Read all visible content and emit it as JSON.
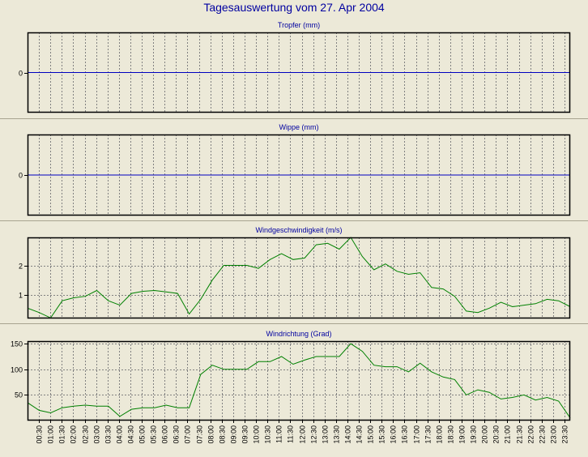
{
  "page": {
    "title": "Tagesauswertung vom 27. Apr 2004"
  },
  "colors": {
    "background": "#ECE9D8",
    "title": "#0000A0",
    "zero_line": "#0000C0",
    "series_line": "#008000",
    "grid": "#808080"
  },
  "x_labels": [
    "00:30",
    "01:00",
    "01:30",
    "02:00",
    "02:30",
    "03:00",
    "03:30",
    "04:00",
    "04:30",
    "05:00",
    "05:30",
    "06:00",
    "06:30",
    "07:00",
    "07:30",
    "08:00",
    "08:30",
    "09:00",
    "09:30",
    "10:00",
    "10:30",
    "11:00",
    "11:30",
    "12:00",
    "12:30",
    "13:00",
    "13:30",
    "14:00",
    "14:30",
    "15:00",
    "15:30",
    "16:00",
    "16:30",
    "17:00",
    "17:30",
    "18:00",
    "18:30",
    "19:00",
    "19:30",
    "20:00",
    "20:30",
    "21:00",
    "21:30",
    "22:00",
    "22:30",
    "23:00",
    "23:30"
  ],
  "chart_data": [
    {
      "type": "line",
      "title": "Tropfer (mm)",
      "yticks": [
        "0"
      ],
      "ylim": [
        -1,
        1
      ],
      "series": [
        {
          "values": [
            0,
            0
          ]
        }
      ]
    },
    {
      "type": "line",
      "title": "Wippe (mm)",
      "yticks": [
        "0"
      ],
      "ylim": [
        -1,
        1
      ],
      "series": [
        {
          "values": [
            0,
            0
          ]
        }
      ]
    },
    {
      "type": "line",
      "title": "Windgeschwindigkeit (m/s)",
      "yticks": [
        "1",
        "2"
      ],
      "ylim": [
        0.2,
        2.95
      ],
      "series": [
        {
          "values": [
            0.55,
            0.4,
            0.22,
            0.8,
            0.9,
            0.95,
            1.15,
            0.8,
            0.65,
            1.05,
            1.12,
            1.15,
            1.1,
            1.05,
            0.35,
            0.85,
            1.5,
            2.0,
            2.0,
            2.0,
            1.9,
            2.2,
            2.4,
            2.2,
            2.25,
            2.7,
            2.75,
            2.55,
            2.95,
            2.3,
            1.85,
            2.05,
            1.8,
            1.7,
            1.75,
            1.25,
            1.2,
            0.95,
            0.45,
            0.4,
            0.55,
            0.75,
            0.6,
            0.65,
            0.7,
            0.85,
            0.8,
            0.6
          ]
        }
      ]
    },
    {
      "type": "line",
      "title": "Windrichtung (Grad)",
      "yticks": [
        "50",
        "100",
        "150"
      ],
      "ylim": [
        0,
        155
      ],
      "series": [
        {
          "values": [
            35,
            20,
            15,
            25,
            28,
            30,
            28,
            28,
            8,
            22,
            25,
            25,
            30,
            25,
            25,
            90,
            108,
            100,
            100,
            100,
            115,
            115,
            125,
            110,
            118,
            125,
            125,
            125,
            150,
            135,
            108,
            105,
            105,
            95,
            112,
            95,
            85,
            80,
            50,
            60,
            55,
            42,
            45,
            50,
            40,
            45,
            38,
            5
          ]
        }
      ]
    }
  ]
}
